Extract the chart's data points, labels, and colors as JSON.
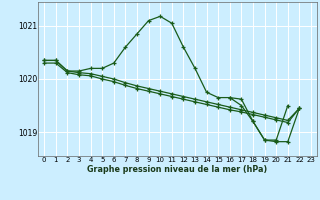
{
  "title": "Graphe pression niveau de la mer (hPa)",
  "bg_color": "#cceeff",
  "grid_color": "#ffffff",
  "line_color": "#1a5c1a",
  "xlim": [
    -0.5,
    23.5
  ],
  "ylim": [
    1018.55,
    1021.45
  ],
  "yticks": [
    1019,
    1020,
    1021
  ],
  "xticks": [
    0,
    1,
    2,
    3,
    4,
    5,
    6,
    7,
    8,
    9,
    10,
    11,
    12,
    13,
    14,
    15,
    16,
    17,
    18,
    19,
    20,
    21,
    22,
    23
  ],
  "s0_x": [
    0,
    1,
    2,
    3,
    4,
    5,
    6,
    7,
    8,
    9,
    10,
    11,
    12,
    13,
    14,
    15,
    16,
    17,
    18,
    19,
    20,
    21
  ],
  "s0_y": [
    1020.35,
    1020.35,
    1020.15,
    1020.15,
    1020.2,
    1020.2,
    1020.3,
    1020.6,
    1020.85,
    1021.1,
    1021.18,
    1021.05,
    1020.6,
    1020.2,
    1019.75,
    1019.65,
    1019.65,
    1019.5,
    1019.2,
    1018.85,
    1018.85,
    1019.5
  ],
  "s1_x": [
    0,
    1,
    2,
    3,
    4,
    5,
    6,
    7,
    8,
    9,
    10,
    11,
    12,
    13,
    14,
    15,
    16,
    17,
    18,
    19,
    20,
    21,
    22
  ],
  "s1_y": [
    1020.35,
    1020.35,
    1020.15,
    1020.12,
    1020.1,
    1020.05,
    1020.0,
    1019.93,
    1019.87,
    1019.82,
    1019.77,
    1019.72,
    1019.67,
    1019.62,
    1019.57,
    1019.52,
    1019.47,
    1019.42,
    1019.37,
    1019.32,
    1019.27,
    1019.22,
    1019.45
  ],
  "s2_x": [
    0,
    1,
    2,
    3,
    4,
    5,
    6,
    7,
    8,
    9,
    10,
    11,
    12,
    13,
    14,
    15,
    16,
    17,
    18,
    19,
    20,
    21,
    22
  ],
  "s2_y": [
    1020.3,
    1020.3,
    1020.12,
    1020.08,
    1020.06,
    1020.0,
    1019.95,
    1019.88,
    1019.82,
    1019.77,
    1019.72,
    1019.67,
    1019.62,
    1019.57,
    1019.52,
    1019.47,
    1019.42,
    1019.38,
    1019.33,
    1019.28,
    1019.23,
    1019.18,
    1019.45
  ],
  "s3_x": [
    16,
    17,
    18,
    19,
    20,
    21,
    22
  ],
  "s3_y": [
    1019.65,
    1019.62,
    1019.2,
    1018.85,
    1018.82,
    1018.82,
    1019.45
  ]
}
